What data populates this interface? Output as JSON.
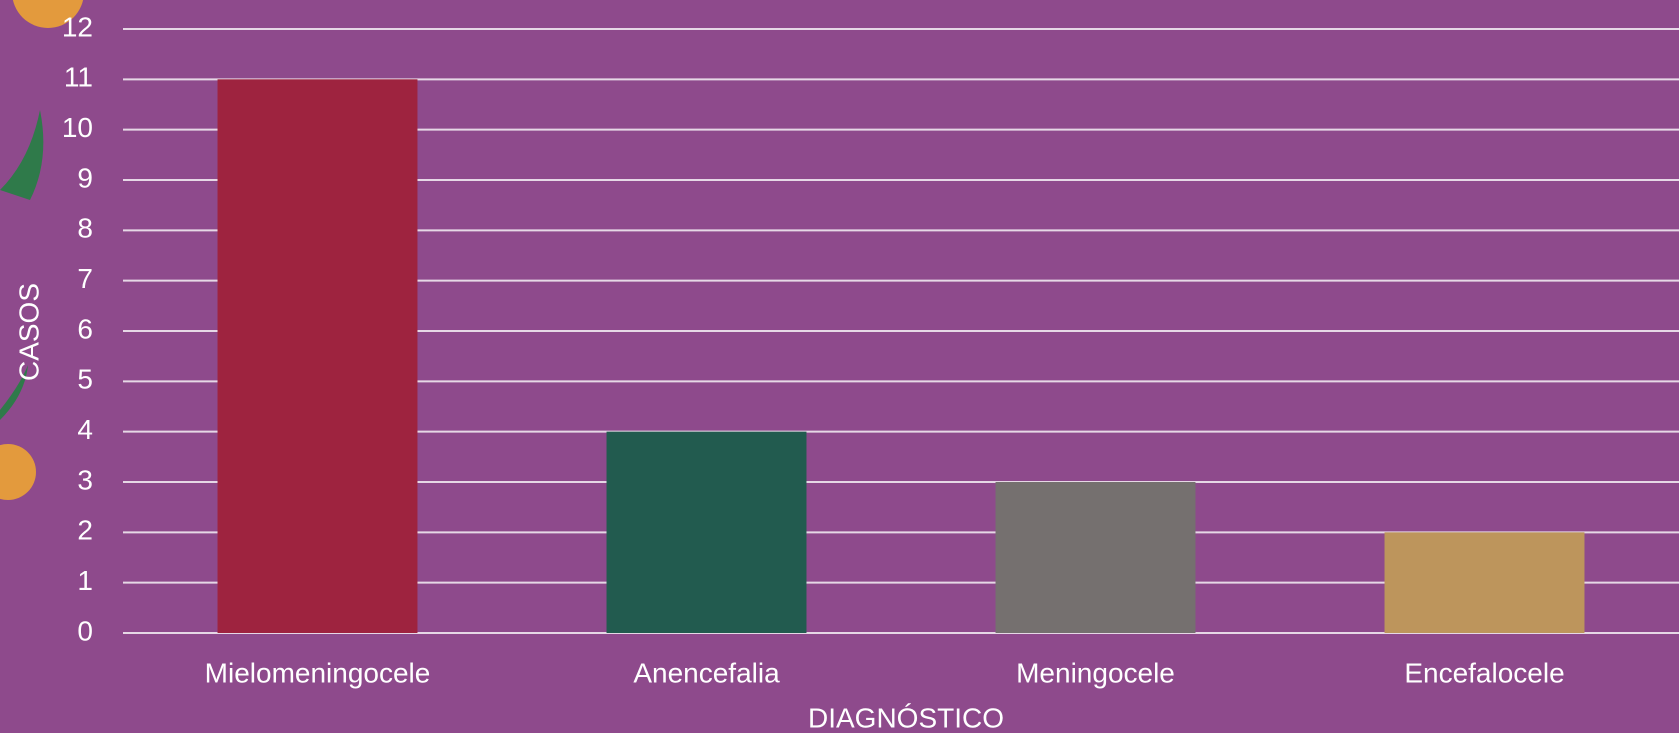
{
  "chart_data": {
    "type": "bar",
    "categories": [
      "Mielomeningocele",
      "Anencefalia",
      "Meningocele",
      "Encefalocele"
    ],
    "values": [
      11,
      4,
      3,
      2
    ],
    "colors": [
      "#9e233f",
      "#225b4f",
      "#75706f",
      "#bd955c"
    ],
    "xlabel": "DIAGNÓSTICO",
    "ylabel": "CASOS",
    "ylim": [
      0,
      12
    ],
    "yticks": [
      0,
      1,
      2,
      3,
      4,
      5,
      6,
      7,
      8,
      9,
      10,
      11,
      12
    ],
    "grid": true
  }
}
